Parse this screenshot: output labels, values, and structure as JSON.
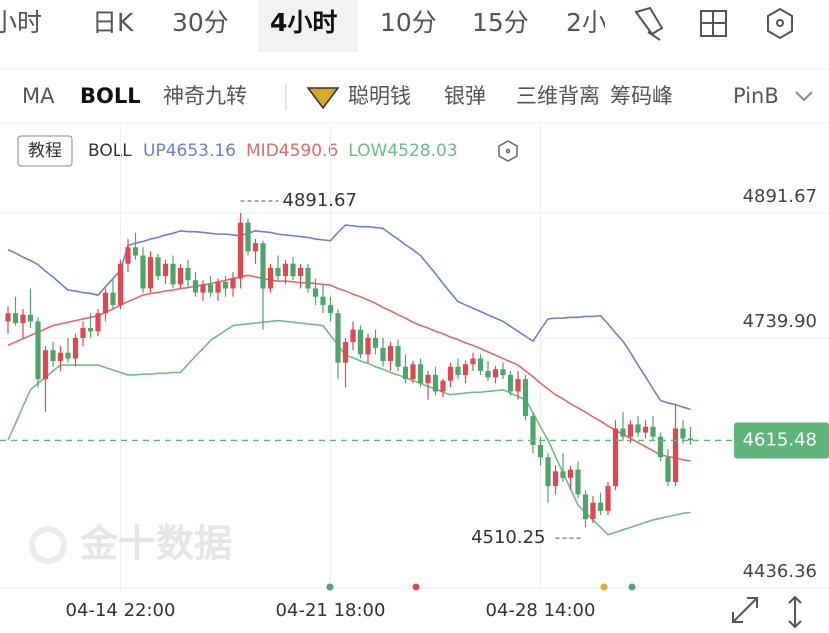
{
  "tabs": [
    "小时",
    "日K",
    "30分",
    "4小时",
    "10分",
    "15分",
    "2小"
  ],
  "indicators": [
    "MA",
    "BOLL",
    "神奇九转",
    "聪明钱",
    "银弹",
    "三维背离",
    "筹码峰",
    "PinB"
  ],
  "tutorial": "教程",
  "watermark": "金十数据",
  "chart_data": {
    "type": "candlestick",
    "indicator": "BOLL",
    "categories": [
      null,
      null,
      null,
      null,
      null,
      null,
      null,
      null,
      null,
      null,
      null,
      null,
      null,
      null,
      null,
      "04-14 22:00",
      null,
      null,
      null,
      null,
      null,
      null,
      null,
      null,
      null,
      null,
      null,
      null,
      null,
      null,
      null,
      null,
      null,
      null,
      null,
      null,
      null,
      null,
      null,
      null,
      null,
      null,
      null,
      "04-21 18:00",
      null,
      null,
      null,
      null,
      null,
      null,
      null,
      null,
      null,
      null,
      null,
      null,
      null,
      null,
      null,
      null,
      null,
      null,
      null,
      null,
      null,
      null,
      null,
      null,
      null,
      null,
      null,
      "04-28 14:00",
      null,
      null,
      null,
      null,
      null,
      null,
      null,
      null,
      null,
      null,
      null,
      null,
      null,
      null,
      null,
      null,
      null,
      null,
      null,
      null
    ],
    "open": [
      4760,
      4770,
      4758,
      4768,
      4760,
      4690,
      4725,
      4712,
      4722,
      4715,
      4740,
      4752,
      4748,
      4770,
      4795,
      4780,
      4830,
      4850,
      4840,
      4800,
      4838,
      4815,
      4830,
      4805,
      4825,
      4810,
      4795,
      4805,
      4795,
      4808,
      4800,
      4812,
      4880,
      4845,
      4855,
      4800,
      4825,
      4815,
      4830,
      4815,
      4825,
      4800,
      4790,
      4780,
      4770,
      4710,
      4735,
      4750,
      4720,
      4740,
      4728,
      4712,
      4730,
      4705,
      4690,
      4708,
      4685,
      4695,
      4675,
      4688,
      4705,
      4695,
      4708,
      4715,
      4700,
      4692,
      4702,
      4695,
      4675,
      4690,
      4645,
      4610,
      4595,
      4560,
      4578,
      4570,
      4580,
      4550,
      4520,
      4540,
      4530,
      4560,
      4630,
      4620,
      4635,
      4625,
      4632,
      4620,
      4595,
      4565,
      4630,
      4618
    ],
    "high": [
      4778,
      4790,
      4775,
      4800,
      4765,
      4730,
      4735,
      4730,
      4740,
      4745,
      4760,
      4770,
      4775,
      4800,
      4812,
      4835,
      4860,
      4868,
      4850,
      4845,
      4842,
      4835,
      4840,
      4830,
      4835,
      4820,
      4810,
      4815,
      4812,
      4815,
      4820,
      4891.67,
      4885,
      4860,
      4858,
      4830,
      4840,
      4835,
      4838,
      4830,
      4830,
      4812,
      4805,
      4790,
      4775,
      4740,
      4760,
      4755,
      4745,
      4750,
      4740,
      4735,
      4738,
      4720,
      4712,
      4715,
      4700,
      4705,
      4690,
      4710,
      4715,
      4712,
      4722,
      4720,
      4712,
      4706,
      4710,
      4700,
      4700,
      4695,
      4650,
      4620,
      4600,
      4585,
      4600,
      4585,
      4590,
      4555,
      4548,
      4552,
      4565,
      4640,
      4650,
      4640,
      4645,
      4640,
      4645,
      4625,
      4605,
      4660,
      4640,
      4632
    ],
    "low": [
      4745,
      4755,
      4740,
      4752,
      4680,
      4650,
      4705,
      4700,
      4710,
      4705,
      4730,
      4740,
      4742,
      4760,
      4775,
      4775,
      4820,
      4835,
      4795,
      4795,
      4810,
      4805,
      4800,
      4800,
      4800,
      4790,
      4785,
      4790,
      4785,
      4790,
      4790,
      4800,
      4840,
      4830,
      4750,
      4795,
      4810,
      4805,
      4810,
      4800,
      4795,
      4780,
      4770,
      4760,
      4690,
      4680,
      4725,
      4715,
      4710,
      4720,
      4705,
      4700,
      4700,
      4685,
      4685,
      4680,
      4665,
      4670,
      4668,
      4680,
      4690,
      4685,
      4700,
      4695,
      4688,
      4685,
      4690,
      4670,
      4665,
      4640,
      4600,
      4585,
      4540,
      4550,
      4565,
      4555,
      4545,
      4510.25,
      4515,
      4525,
      4525,
      4555,
      4615,
      4612,
      4620,
      4618,
      4615,
      4590,
      4560,
      4560,
      4612,
      4610
    ],
    "close": [
      4770,
      4758,
      4768,
      4760,
      4690,
      4725,
      4712,
      4722,
      4715,
      4740,
      4752,
      4748,
      4770,
      4795,
      4780,
      4830,
      4850,
      4840,
      4800,
      4838,
      4815,
      4830,
      4805,
      4825,
      4810,
      4795,
      4805,
      4795,
      4808,
      4800,
      4812,
      4880,
      4845,
      4855,
      4800,
      4825,
      4815,
      4830,
      4815,
      4825,
      4800,
      4790,
      4780,
      4770,
      4710,
      4735,
      4750,
      4720,
      4740,
      4728,
      4712,
      4730,
      4705,
      4690,
      4708,
      4685,
      4695,
      4675,
      4688,
      4705,
      4695,
      4708,
      4715,
      4700,
      4692,
      4702,
      4695,
      4675,
      4690,
      4645,
      4610,
      4595,
      4560,
      4578,
      4570,
      4580,
      4550,
      4520,
      4540,
      4530,
      4560,
      4630,
      4620,
      4635,
      4625,
      4632,
      4620,
      4595,
      4565,
      4630,
      4618,
      4615.48
    ],
    "up_color": "#e0474f",
    "down_color": "#4fa46c",
    "series": [
      {
        "name": "UP",
        "color": "#6b80cf",
        "values": [
          4847,
          4843,
          4838,
          4834,
          4829,
          4821,
          4814,
          4806,
          4798,
          4797,
          4795,
          4794,
          4792,
          4802,
          4812,
          4822,
          4852,
          4855,
          4857,
          4860,
          4862,
          4865,
          4867,
          4870,
          4869,
          4869,
          4868,
          4867,
          4866,
          4866,
          4865,
          4864,
          4867,
          4870,
          4869,
          4868,
          4866,
          4865,
          4864,
          4863,
          4862,
          4860,
          4859,
          4858,
          4868,
          4877,
          4876,
          4875,
          4875,
          4874,
          4873,
          4866,
          4860,
          4853,
          4847,
          4840,
          4829,
          4818,
          4806,
          4795,
          4784,
          4780,
          4776,
          4772,
          4768,
          4764,
          4760,
          4754,
          4748,
          4742,
          4736,
          4750,
          4763,
          4764,
          4764,
          4765,
          4765,
          4766,
          4766,
          4767,
          4757,
          4746,
          4736,
          4722,
          4707,
          4693,
          4678,
          4664,
          4661,
          4659,
          4656,
          4653.16
        ]
      },
      {
        "name": "MID",
        "color": "#e4686a",
        "values": [
          4731,
          4735,
          4739,
          4743,
          4747,
          4751,
          4755,
          4757,
          4759,
          4761,
          4763,
          4765,
          4767,
          4771,
          4775,
          4780,
          4784,
          4788,
          4792,
          4794,
          4795,
          4797,
          4798,
          4800,
          4801,
          4803,
          4804,
          4806,
          4808,
          4810,
          4812,
          4814,
          4816,
          4814,
          4812,
          4810,
          4809,
          4809,
          4808,
          4807,
          4807,
          4806,
          4805,
          4804,
          4800,
          4797,
          4793,
          4790,
          4786,
          4782,
          4777,
          4773,
          4768,
          4764,
          4759,
          4755,
          4752,
          4748,
          4745,
          4741,
          4738,
          4734,
          4731,
          4727,
          4723,
          4719,
          4715,
          4711,
          4707,
          4700,
          4693,
          4685,
          4678,
          4671,
          4666,
          4660,
          4655,
          4650,
          4644,
          4639,
          4633,
          4628,
          4623,
          4618,
          4613,
          4608,
          4603,
          4598,
          4596,
          4594,
          4592,
          4590.6
        ]
      },
      {
        "name": "LOW",
        "color": "#6dbd86",
        "values": [
          4616,
          4636,
          4657,
          4677,
          4685,
          4692,
          4700,
          4707,
          4707,
          4707,
          4707,
          4707,
          4707,
          4704,
          4701,
          4698,
          4695,
          4695,
          4696,
          4696,
          4697,
          4697,
          4698,
          4698,
          4708,
          4718,
          4727,
          4737,
          4743,
          4749,
          4755,
          4756,
          4757,
          4758,
          4759,
          4760,
          4761,
          4760,
          4759,
          4758,
          4757,
          4756,
          4755,
          4743,
          4731,
          4719,
          4716,
          4712,
          4709,
          4705,
          4702,
          4698,
          4695,
          4692,
          4688,
          4685,
          4681,
          4678,
          4674,
          4671,
          4672,
          4673,
          4674,
          4674,
          4675,
          4676,
          4677,
          4673,
          4669,
          4665,
          4649,
          4632,
          4616,
          4596,
          4576,
          4557,
          4537,
          4528,
          4519,
          4510,
          4501,
          4504,
          4507,
          4510,
          4513,
          4516,
          4519,
          4521,
          4523,
          4525,
          4527,
          4528.03
        ]
      }
    ],
    "ylim": [
      4431.5,
      4931.7
    ],
    "yticks": [
      4891.67,
      {
        "value": 4739.9,
        "label": "4739.90"
      },
      4436.36
    ],
    "xgrid": true,
    "ygrid": true,
    "price_color": "#5fb47b"
  }
}
